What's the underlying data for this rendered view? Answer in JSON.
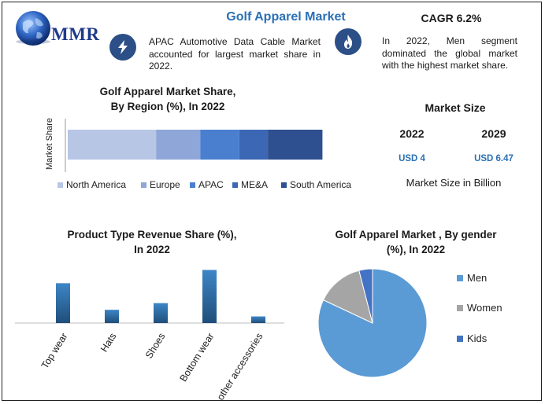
{
  "brand": {
    "logo_text": "MMR"
  },
  "header": {
    "title": "Golf Apparel Market",
    "cagr": "CAGR 6.2%",
    "blurb_left": "APAC Automotive Data Cable Market accounted for largest market share in 2022.",
    "blurb_right": "In 2022, Men segment dominated the global market with the highest market share.",
    "icon_left": "lightning-icon",
    "icon_right": "flame-icon"
  },
  "market_size": {
    "title": "Market Size",
    "year_start": "2022",
    "year_end": "2029",
    "value_start": "USD 4",
    "value_end": "USD 6.47",
    "footnote": "Market Size in Billion"
  },
  "colors": {
    "region": [
      "#b8c6e6",
      "#8ea6d8",
      "#4a7fcf",
      "#3b67b5",
      "#2e4f90"
    ],
    "product_bar_top": "#3d86c6",
    "product_bar_bottom": "#1f4e7a",
    "gender": [
      "#5b9bd5",
      "#a5a5a5",
      "#4472c4"
    ]
  },
  "chart_data": [
    {
      "type": "bar",
      "orientation": "horizontal-stacked",
      "title": "Golf Apparel Market Share,\nBy Region (%), In 2022",
      "ylabel": "Market Share",
      "categories": [
        "Market Share"
      ],
      "series": [
        {
          "name": "North America",
          "values": [
            34
          ]
        },
        {
          "name": "Europe",
          "values": [
            17
          ]
        },
        {
          "name": "APAC",
          "values": [
            15
          ]
        },
        {
          "name": "ME&A",
          "values": [
            11
          ]
        },
        {
          "name": "South America",
          "values": [
            21
          ]
        }
      ],
      "xlim": [
        0,
        100
      ],
      "grid": false,
      "legend": "bottom"
    },
    {
      "type": "bar",
      "title": "Product Type Revenue Share (%),\nIn 2022",
      "categories": [
        "Top wear",
        "Hats",
        "Shoes",
        "Bottom wear",
        "other accessories"
      ],
      "values": [
        30,
        10,
        15,
        40,
        5
      ],
      "ylim": [
        0,
        45
      ],
      "grid": false
    },
    {
      "type": "pie",
      "title": "Golf Apparel Market , By gender\n(%), In 2022",
      "categories": [
        "Men",
        "Women",
        "Kids"
      ],
      "values": [
        82,
        14,
        4
      ],
      "legend": "right"
    }
  ]
}
